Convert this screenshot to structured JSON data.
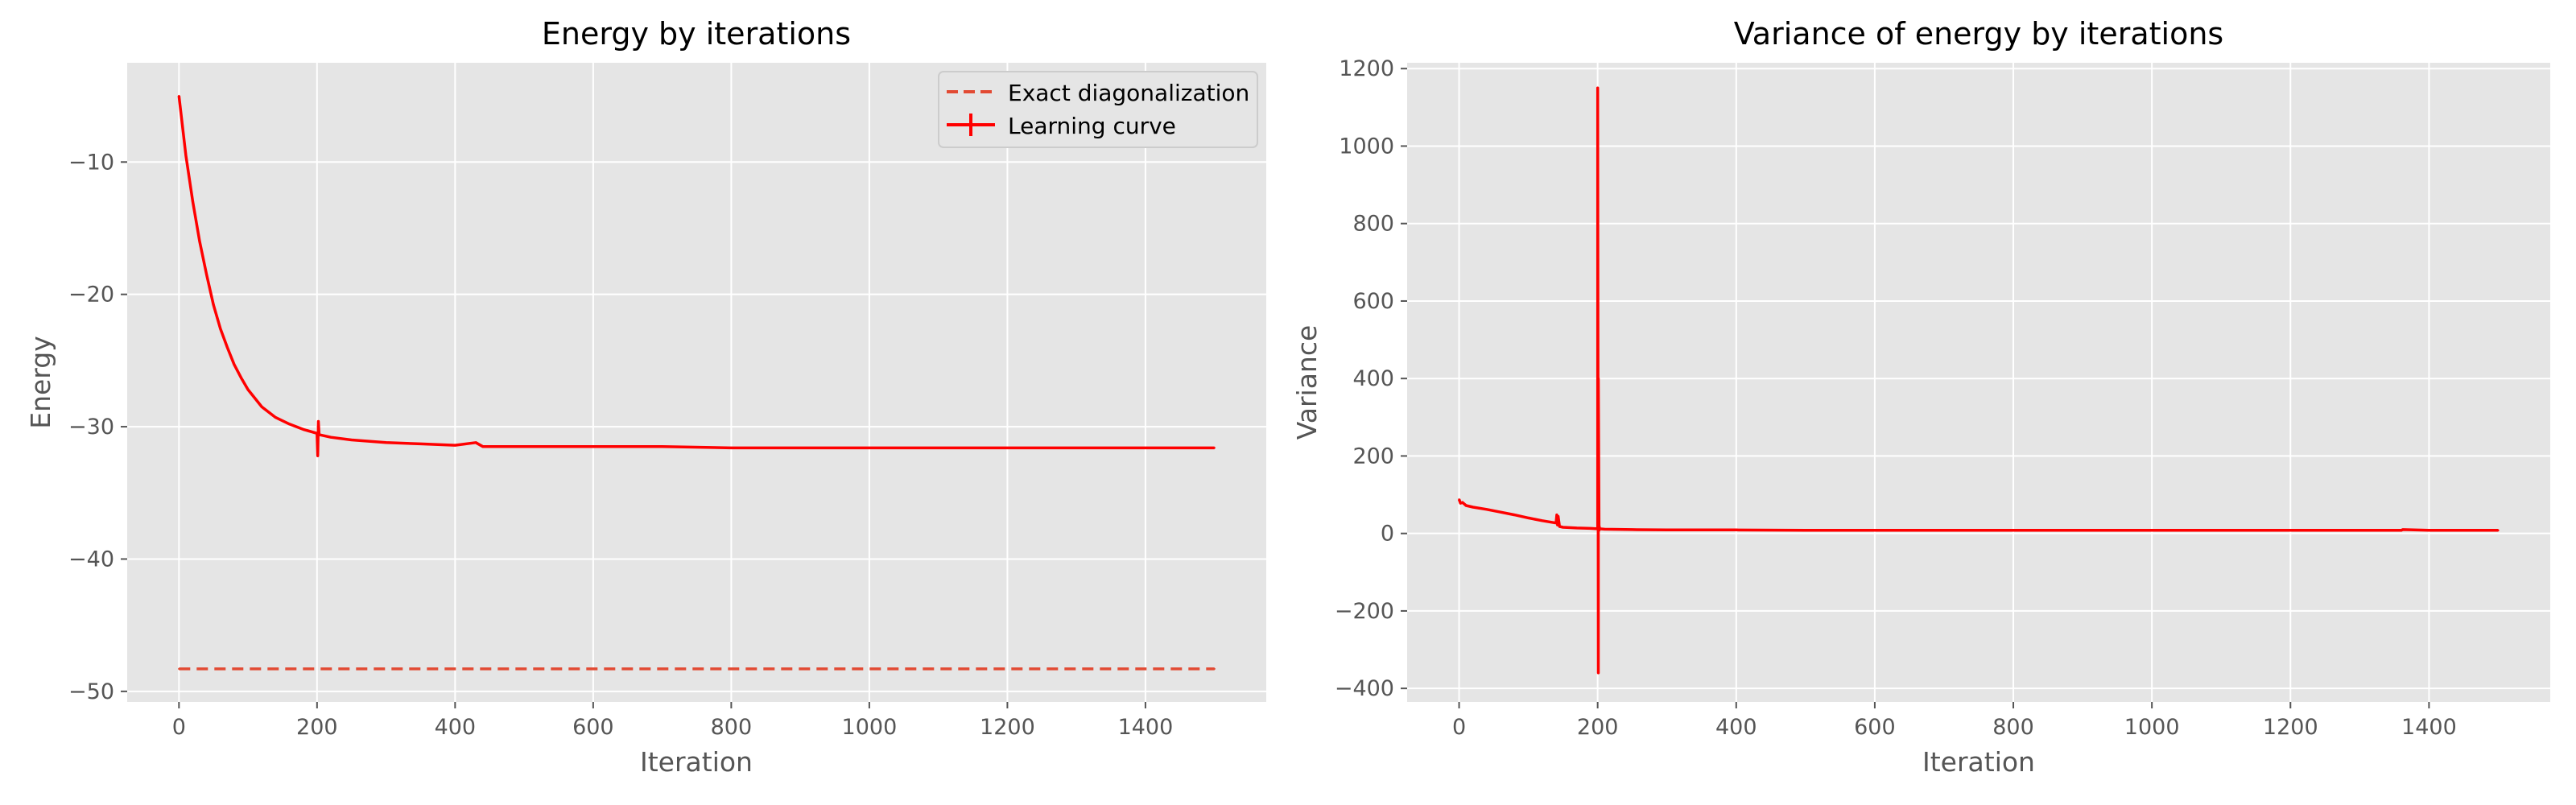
{
  "chart_data": [
    {
      "type": "line",
      "title": "Energy by iterations",
      "xlabel": "Iteration",
      "ylabel": "Energy",
      "xlim": [
        -75,
        1575
      ],
      "ylim": [
        -50.8,
        -2.5
      ],
      "xticks": [
        0,
        200,
        400,
        600,
        800,
        1000,
        1200,
        1400
      ],
      "yticks": [
        -50,
        -40,
        -30,
        -20,
        -10
      ],
      "xtick_labels": [
        "0",
        "200",
        "400",
        "600",
        "800",
        "1000",
        "1200",
        "1400"
      ],
      "ytick_labels": [
        "−50",
        "−40",
        "−30",
        "−20",
        "−10"
      ],
      "grid": true,
      "legend": {
        "placement": "top-right",
        "entries": [
          "Exact diagonalization",
          "Learning curve"
        ]
      },
      "series": [
        {
          "name": "Exact diagonalization",
          "style": "dashed",
          "color": "#e24a33",
          "x": [
            0,
            1500
          ],
          "y": [
            -48.3,
            -48.3
          ]
        },
        {
          "name": "Learning curve",
          "style": "solid",
          "color": "#ff0000",
          "x": [
            0,
            10,
            20,
            30,
            40,
            50,
            60,
            70,
            80,
            90,
            100,
            120,
            140,
            160,
            180,
            200,
            201,
            202,
            203,
            220,
            250,
            300,
            350,
            400,
            430,
            440,
            450,
            500,
            600,
            700,
            800,
            900,
            1000,
            1100,
            1200,
            1300,
            1400,
            1500
          ],
          "y": [
            -5.0,
            -9.5,
            -13.0,
            -16.0,
            -18.5,
            -20.8,
            -22.6,
            -24.0,
            -25.3,
            -26.3,
            -27.2,
            -28.5,
            -29.3,
            -29.8,
            -30.2,
            -30.5,
            -32.2,
            -29.6,
            -30.6,
            -30.8,
            -31.0,
            -31.2,
            -31.3,
            -31.4,
            -31.2,
            -31.5,
            -31.5,
            -31.5,
            -31.5,
            -31.5,
            -31.6,
            -31.6,
            -31.6,
            -31.6,
            -31.6,
            -31.6,
            -31.6,
            -31.6
          ]
        }
      ]
    },
    {
      "type": "line",
      "title": "Variance of energy by iterations",
      "xlabel": "Iteration",
      "ylabel": "Variance",
      "xlim": [
        -75,
        1575
      ],
      "ylim": [
        -435,
        1215
      ],
      "xticks": [
        0,
        200,
        400,
        600,
        800,
        1000,
        1200,
        1400
      ],
      "yticks": [
        -400,
        -200,
        0,
        200,
        400,
        600,
        800,
        1000,
        1200
      ],
      "xtick_labels": [
        "0",
        "200",
        "400",
        "600",
        "800",
        "1000",
        "1200",
        "1400"
      ],
      "ytick_labels": [
        "−400",
        "−200",
        "0",
        "200",
        "400",
        "600",
        "800",
        "1000",
        "1200"
      ],
      "grid": true,
      "series": [
        {
          "color": "#ff0000",
          "style": "solid",
          "x": [
            0,
            2,
            5,
            10,
            20,
            40,
            60,
            80,
            100,
            120,
            140,
            141,
            142,
            143,
            145,
            150,
            170,
            190,
            200,
            200,
            201,
            201,
            202,
            202,
            203,
            210,
            250,
            300,
            400,
            500,
            600,
            800,
            1000,
            1200,
            1360,
            1362,
            1400,
            1500
          ],
          "y": [
            88,
            78,
            80,
            72,
            68,
            62,
            55,
            48,
            40,
            33,
            27,
            48,
            22,
            44,
            18,
            16,
            14,
            13,
            12,
            1150,
            -360,
            400,
            8,
            20,
            12,
            11,
            10,
            9,
            9,
            8,
            8,
            8,
            8,
            8,
            8,
            10,
            8,
            8
          ]
        }
      ]
    }
  ]
}
